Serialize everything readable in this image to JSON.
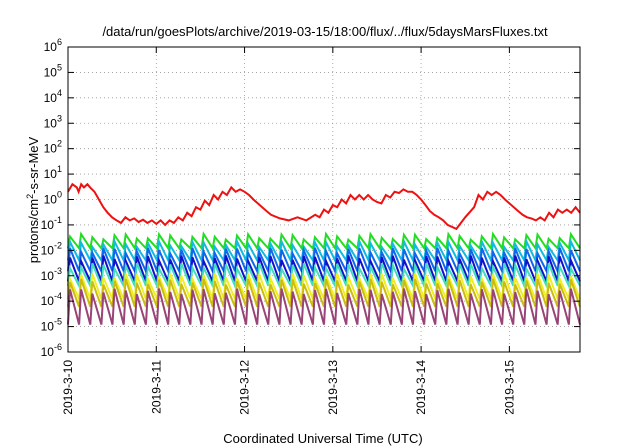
{
  "chart_data": {
    "type": "line",
    "title": "/data/run/goesPlots/archive/2019-03-15/18:00/flux/../flux/5daysMarsFluxes.txt",
    "xlabel": "Coordinated Universal Time (UTC)",
    "ylabel": "protons/cm2-s-sr-MeV",
    "ylabel_parts": {
      "pre": "protons/cm",
      "sup": "2",
      "post": "-s-sr-MeV"
    },
    "xlim": [
      0,
      5.8
    ],
    "x_units": "days since 2019-3-10 00:00 UTC",
    "x_ticks": [
      {
        "x": 0,
        "label": "2019-3-10"
      },
      {
        "x": 1,
        "label": "2019-3-11"
      },
      {
        "x": 2,
        "label": "2019-3-12"
      },
      {
        "x": 3,
        "label": "2019-3-13"
      },
      {
        "x": 4,
        "label": "2019-3-14"
      },
      {
        "x": 5,
        "label": "2019-3-15"
      }
    ],
    "yscale": "log",
    "ylim": [
      1e-06,
      1000000.0
    ],
    "y_ticks": [
      {
        "exp": "-6"
      },
      {
        "exp": "-5"
      },
      {
        "exp": "-4"
      },
      {
        "exp": "-3"
      },
      {
        "exp": "-2"
      },
      {
        "exp": "-1"
      },
      {
        "exp": "0"
      },
      {
        "exp": "1"
      },
      {
        "exp": "2"
      },
      {
        "exp": "3"
      },
      {
        "exp": "4"
      },
      {
        "exp": "5"
      },
      {
        "exp": "6"
      }
    ],
    "grid": true,
    "series": [
      {
        "color": "#ee1111",
        "x": [
          0.0,
          0.05,
          0.1,
          0.12,
          0.15,
          0.18,
          0.22,
          0.25,
          0.3,
          0.35,
          0.4,
          0.45,
          0.5,
          0.55,
          0.6,
          0.65,
          0.7,
          0.75,
          0.8,
          0.85,
          0.9,
          0.95,
          1.0,
          1.05,
          1.1,
          1.15,
          1.2,
          1.25,
          1.3,
          1.35,
          1.4,
          1.45,
          1.5,
          1.55,
          1.6,
          1.65,
          1.7,
          1.75,
          1.8,
          1.85,
          1.9,
          1.95,
          2.0,
          2.05,
          2.1,
          2.15,
          2.2,
          2.25,
          2.3,
          2.4,
          2.5,
          2.6,
          2.7,
          2.8,
          2.85,
          2.9,
          2.95,
          3.0,
          3.05,
          3.1,
          3.15,
          3.2,
          3.25,
          3.3,
          3.35,
          3.4,
          3.45,
          3.5,
          3.55,
          3.6,
          3.65,
          3.7,
          3.75,
          3.8,
          3.85,
          3.9,
          3.95,
          4.0,
          4.05,
          4.1,
          4.15,
          4.2,
          4.25,
          4.3,
          4.4,
          4.5,
          4.6,
          4.65,
          4.7,
          4.75,
          4.8,
          4.85,
          4.9,
          4.95,
          5.0,
          5.05,
          5.1,
          5.15,
          5.2,
          5.25,
          5.3,
          5.35,
          5.4,
          5.45,
          5.5,
          5.55,
          5.6,
          5.65,
          5.7,
          5.75,
          5.8
        ],
        "y": [
          2.0,
          4.0,
          3.0,
          2.0,
          4.0,
          3.0,
          4.0,
          3.0,
          2.0,
          1.0,
          0.5,
          0.3,
          0.2,
          0.15,
          0.12,
          0.2,
          0.15,
          0.18,
          0.13,
          0.16,
          0.12,
          0.15,
          0.11,
          0.15,
          0.1,
          0.15,
          0.12,
          0.2,
          0.15,
          0.3,
          0.22,
          0.5,
          0.4,
          0.9,
          0.6,
          1.5,
          1.0,
          2.0,
          1.5,
          3.0,
          2.0,
          2.5,
          2.0,
          1.5,
          1.0,
          0.7,
          0.5,
          0.35,
          0.25,
          0.18,
          0.15,
          0.2,
          0.15,
          0.25,
          0.2,
          0.4,
          0.3,
          0.6,
          0.5,
          1.0,
          0.7,
          1.5,
          1.0,
          1.5,
          1.0,
          1.5,
          1.0,
          0.8,
          0.7,
          1.5,
          1.2,
          2.0,
          1.8,
          2.5,
          2.0,
          2.0,
          1.5,
          1.0,
          0.6,
          0.35,
          0.25,
          0.2,
          0.15,
          0.1,
          0.07,
          0.2,
          0.5,
          1.5,
          1.0,
          2.0,
          1.5,
          2.0,
          1.5,
          1.0,
          0.7,
          0.5,
          0.35,
          0.25,
          0.2,
          0.18,
          0.15,
          0.2,
          0.15,
          0.3,
          0.2,
          0.4,
          0.3,
          0.4,
          0.3,
          0.5,
          0.3
        ]
      }
    ],
    "spike_series": [
      {
        "color": "#22dd22",
        "base": 0.012,
        "peak": 0.035
      },
      {
        "color": "#11bbdd",
        "base": 0.004,
        "peak": 0.018
      },
      {
        "color": "#1166ee",
        "base": 0.0015,
        "peak": 0.01
      },
      {
        "color": "#1111cc",
        "base": 0.0006,
        "peak": 0.005
      },
      {
        "color": "#44ddbb",
        "base": 0.0004,
        "peak": 0.0025
      },
      {
        "color": "#eeee22",
        "base": 0.00012,
        "peak": 0.001
      },
      {
        "color": "#ccbb11",
        "base": 6e-05,
        "peak": 0.0006
      },
      {
        "color": "#994477",
        "base": 1.2e-05,
        "peak": 0.00025
      }
    ],
    "spike_cycles": 46
  }
}
